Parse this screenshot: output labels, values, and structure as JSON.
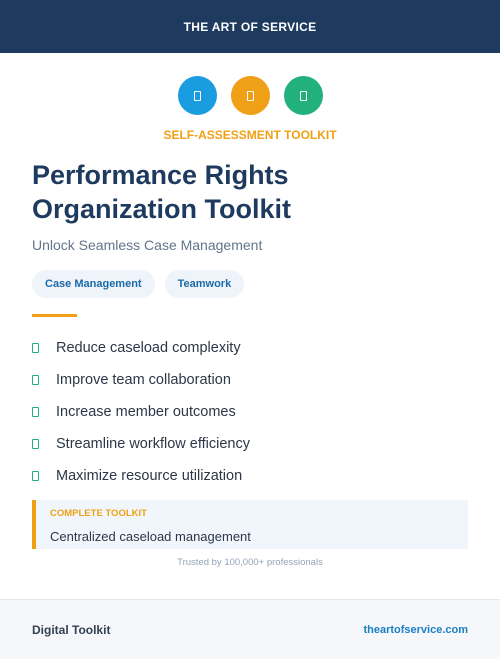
{
  "header": {
    "brand": "THE ART OF SERVICE"
  },
  "icons": [
    {
      "name": "document-icon",
      "color": "#1a9de0"
    },
    {
      "name": "document-icon",
      "color": "#f0a016"
    },
    {
      "name": "document-icon",
      "color": "#22b07d"
    }
  ],
  "eyebrow": "SELF-ASSESSMENT TOOLKIT",
  "title_lines": [
    "Performance Rights",
    "Organization Toolkit"
  ],
  "subtitle": "Unlock Seamless Case Management",
  "tags": [
    "Case Management",
    "Teamwork"
  ],
  "benefits": [
    "Reduce caseload complexity",
    "Improve team collaboration",
    "Increase member outcomes",
    "Streamline workflow efficiency",
    "Maximize resource utilization"
  ],
  "callout": {
    "heading": "COMPLETE TOOLKIT",
    "text": "Centralized caseload management"
  },
  "trusted": "Trusted by 100,000+ professionals",
  "footer": {
    "left": "Digital Toolkit",
    "right": "theartofservice.com"
  },
  "colors": {
    "navy": "#1e3a5f",
    "accent": "#f0a016",
    "check": "#22b07d",
    "link": "#1b7fc4"
  }
}
